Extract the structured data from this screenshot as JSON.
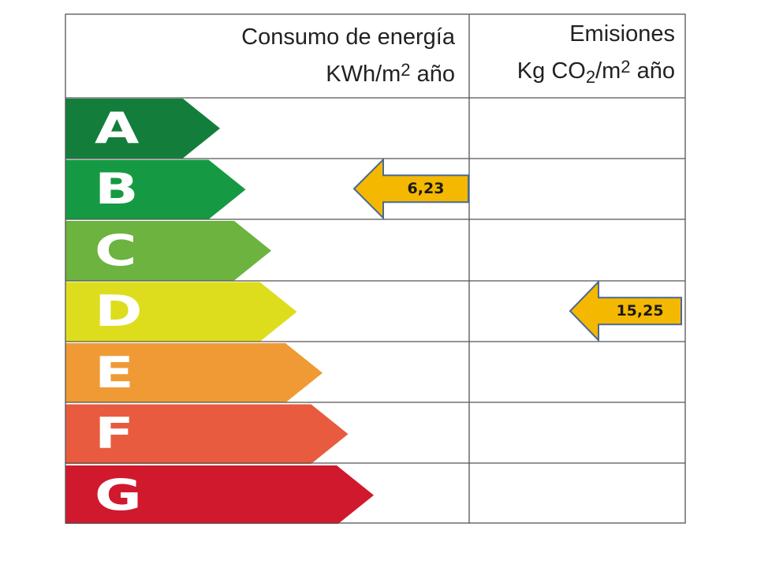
{
  "header": {
    "energy": {
      "line1": "Consumo de energía",
      "line2_prefix": "KWh/m",
      "line2_sup": "2",
      "line2_suffix": " año"
    },
    "emissions": {
      "line1": "Emisiones",
      "line2_prefix": "Kg CO",
      "line2_sub": "2",
      "line2_mid": "/m",
      "line2_sup": "2",
      "line2_suffix": " año"
    }
  },
  "grades": [
    {
      "letter": "A",
      "color": "#137e3c"
    },
    {
      "letter": "B",
      "color": "#159a43"
    },
    {
      "letter": "C",
      "color": "#6cb33f"
    },
    {
      "letter": "D",
      "color": "#dddd1d"
    },
    {
      "letter": "E",
      "color": "#f09a35"
    },
    {
      "letter": "F",
      "color": "#e85b3f"
    },
    {
      "letter": "G",
      "color": "#d1192e"
    }
  ],
  "pointers": {
    "energy": {
      "value": "6,23",
      "grade": "B",
      "color": "#f5b800"
    },
    "emissions": {
      "value": "15,25",
      "grade": "D",
      "color": "#f5b800"
    }
  }
}
